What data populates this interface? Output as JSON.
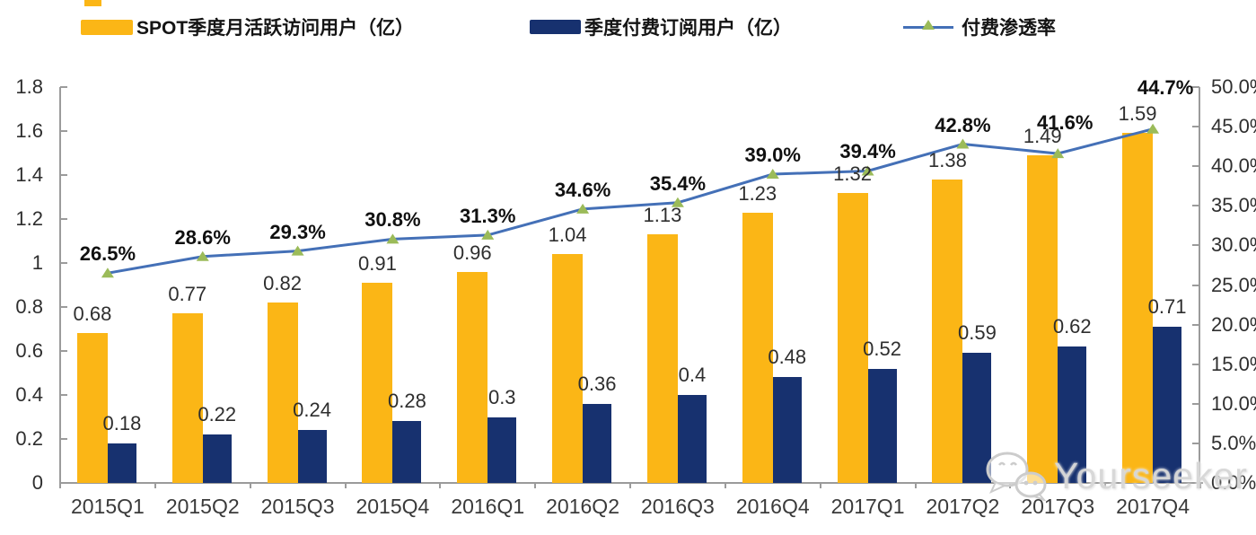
{
  "legend": {
    "items": [
      {
        "label": "SPOT季度月活跃访问用户（亿）",
        "swatch": "bar",
        "color": "#FBB616"
      },
      {
        "label": "季度付费订阅用户（亿）",
        "swatch": "bar",
        "color": "#17316F"
      },
      {
        "label": "付费渗透率",
        "swatch": "line-triangle",
        "line_color": "#4470B7",
        "marker_color": "#9BBB59"
      }
    ]
  },
  "watermark": {
    "text": "Yourseeker",
    "icon": "wechat-icon"
  },
  "chart_data": {
    "type": "bar",
    "subtype": "grouped-bars-with-line-combo",
    "title": "",
    "categories": [
      "2015Q1",
      "2015Q2",
      "2015Q3",
      "2015Q4",
      "2016Q1",
      "2016Q2",
      "2016Q3",
      "2016Q4",
      "2017Q1",
      "2017Q2",
      "2017Q3",
      "2017Q4"
    ],
    "series": [
      {
        "name": "SPOT季度月活跃访问用户（亿）",
        "type": "bar",
        "axis": "left",
        "color": "#FBB616",
        "values": [
          0.68,
          0.77,
          0.82,
          0.91,
          0.96,
          1.04,
          1.13,
          1.23,
          1.32,
          1.38,
          1.49,
          1.59
        ],
        "labels": [
          "0.68",
          "0.77",
          "0.82",
          "0.91",
          "0.96",
          "1.04",
          "1.13",
          "1.23",
          "1.32",
          "1.38",
          "1.49",
          "1.59"
        ]
      },
      {
        "name": "季度付费订阅用户（亿）",
        "type": "bar",
        "axis": "left",
        "color": "#17316F",
        "values": [
          0.18,
          0.22,
          0.24,
          0.28,
          0.3,
          0.36,
          0.4,
          0.48,
          0.52,
          0.59,
          0.62,
          0.71
        ],
        "labels": [
          "0.18",
          "0.22",
          "0.24",
          "0.28",
          "0.3",
          "0.36",
          "0.4",
          "0.48",
          "0.52",
          "0.59",
          "0.62",
          "0.71"
        ]
      },
      {
        "name": "付费渗透率",
        "type": "line",
        "axis": "right",
        "color": "#4470B7",
        "marker": "triangle",
        "marker_color": "#9BBB59",
        "values": [
          26.5,
          28.6,
          29.3,
          30.8,
          31.3,
          34.6,
          35.4,
          39.0,
          39.4,
          42.8,
          41.6,
          44.7
        ],
        "labels": [
          "26.5%",
          "28.6%",
          "29.3%",
          "30.8%",
          "31.3%",
          "34.6%",
          "35.4%",
          "39.0%",
          "39.4%",
          "42.8%",
          "41.6%",
          "44.7%"
        ]
      }
    ],
    "left_axis": {
      "min": 0,
      "max": 1.8,
      "step": 0.2,
      "ticks": [
        "0",
        "0.2",
        "0.4",
        "0.6",
        "0.8",
        "1",
        "1.2",
        "1.4",
        "1.6",
        "1.8"
      ]
    },
    "right_axis": {
      "min": 0,
      "max": 50,
      "step": 5,
      "ticks": [
        "0.0%",
        "5.0%",
        "10.0%",
        "15.0%",
        "20.0%",
        "25.0%",
        "30.0%",
        "35.0%",
        "40.0%",
        "45.0%",
        "50.0%"
      ]
    },
    "grid": false,
    "legend_position": "top"
  }
}
